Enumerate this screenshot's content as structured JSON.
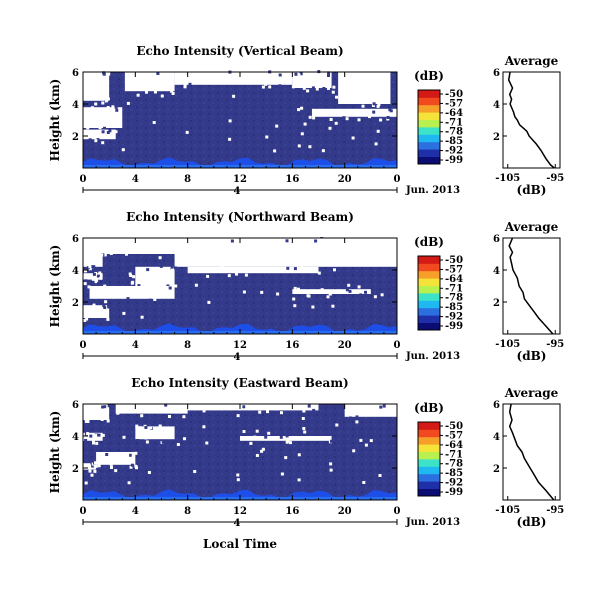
{
  "page": {
    "xlabel": "Local Time",
    "date_label": "Jun. 2013"
  },
  "colorbar": {
    "unit_label": "(dB)",
    "tick_labels": [
      "-50",
      "-57",
      "-64",
      "-71",
      "-78",
      "-85",
      "-92",
      "-99"
    ],
    "colors": [
      "#0b0d75",
      "#1f2fa8",
      "#2b6fe0",
      "#20b8f0",
      "#3de3c8",
      "#b8f050",
      "#f6e33a",
      "#f6a02a",
      "#f04a1e",
      "#d41a16"
    ]
  },
  "colors": {
    "background_fill": "#343a8a",
    "missing_data": "#ffffff",
    "near_ground": "#1e4ee8"
  },
  "chart_data": [
    {
      "type": "heatmap",
      "title": "Echo Intensity (Vertical Beam)",
      "ylabel": "Height (km)",
      "x_ticks": [
        "0",
        "4",
        "8",
        "12",
        "16",
        "20",
        "0"
      ],
      "y_ticks": [
        "6",
        "4",
        "2"
      ],
      "xlim": [
        0,
        24
      ],
      "ylim": [
        0,
        6
      ],
      "sub_tick_label": "4",
      "zrange": [
        -99,
        -50
      ],
      "white_regions": [
        [
          0.0,
          2.0,
          4.2,
          6.0
        ],
        [
          3.2,
          7.0,
          4.8,
          6.0
        ],
        [
          7.0,
          16.0,
          5.2,
          6.0
        ],
        [
          16.0,
          19.0,
          5.0,
          6.0
        ],
        [
          19.5,
          23.5,
          4.0,
          6.0
        ],
        [
          0.0,
          3.0,
          2.5,
          3.8
        ],
        [
          0.0,
          2.5,
          1.8,
          2.4
        ],
        [
          17.5,
          24.0,
          3.2,
          3.7
        ]
      ],
      "average_profile": {
        "title": "Average",
        "xlabel": "(dB)",
        "x_ticks": [
          "-105",
          "-95"
        ],
        "y_ticks": [
          "6",
          "4",
          "2"
        ],
        "xlim": [
          -106,
          -94
        ],
        "points": [
          [
            -104.5,
            6.0
          ],
          [
            -104.8,
            5.5
          ],
          [
            -104.0,
            5.0
          ],
          [
            -104.6,
            4.6
          ],
          [
            -104.2,
            4.3
          ],
          [
            -104.5,
            4.0
          ],
          [
            -103.8,
            3.5
          ],
          [
            -103.5,
            3.2
          ],
          [
            -103.0,
            3.0
          ],
          [
            -102.5,
            2.7
          ],
          [
            -101.0,
            2.3
          ],
          [
            -100.5,
            2.0
          ],
          [
            -99.0,
            1.5
          ],
          [
            -98.0,
            1.1
          ],
          [
            -97.0,
            0.6
          ],
          [
            -96.0,
            0.2
          ],
          [
            -95.2,
            0.0
          ]
        ]
      }
    },
    {
      "type": "heatmap",
      "title": "Echo Intensity (Northward Beam)",
      "ylabel": "Height (km)",
      "x_ticks": [
        "0",
        "4",
        "8",
        "12",
        "16",
        "20",
        "0"
      ],
      "y_ticks": [
        "6",
        "4",
        "2"
      ],
      "xlim": [
        0,
        24
      ],
      "ylim": [
        0,
        6
      ],
      "sub_tick_label": "4",
      "zrange": [
        -99,
        -50
      ],
      "white_regions": [
        [
          0.0,
          24.0,
          5.0,
          6.0
        ],
        [
          7.0,
          24.0,
          4.2,
          6.0
        ],
        [
          0.0,
          1.5,
          4.2,
          5.0
        ],
        [
          8.0,
          18.0,
          3.8,
          4.2
        ],
        [
          0.0,
          1.5,
          3.4,
          3.8
        ],
        [
          4.0,
          7.0,
          3.0,
          4.2
        ],
        [
          0.5,
          7.0,
          2.2,
          3.0
        ],
        [
          16.0,
          22.0,
          2.5,
          2.8
        ],
        [
          0.0,
          2.0,
          1.0,
          1.8
        ]
      ],
      "average_profile": {
        "title": "Average",
        "xlabel": "(dB)",
        "x_ticks": [
          "-105",
          "-95"
        ],
        "y_ticks": [
          "6",
          "4",
          "2"
        ],
        "xlim": [
          -106,
          -94
        ],
        "points": [
          [
            -104.0,
            6.0
          ],
          [
            -104.7,
            5.5
          ],
          [
            -104.0,
            5.1
          ],
          [
            -104.5,
            4.8
          ],
          [
            -104.2,
            4.4
          ],
          [
            -103.9,
            4.0
          ],
          [
            -103.0,
            3.5
          ],
          [
            -102.6,
            3.0
          ],
          [
            -101.8,
            2.6
          ],
          [
            -101.5,
            2.2
          ],
          [
            -100.5,
            1.8
          ],
          [
            -99.5,
            1.4
          ],
          [
            -98.5,
            1.0
          ],
          [
            -97.0,
            0.5
          ],
          [
            -95.5,
            0.0
          ]
        ]
      }
    },
    {
      "type": "heatmap",
      "title": "Echo Intensity (Eastward Beam)",
      "ylabel": "Height (km)",
      "x_ticks": [
        "0",
        "4",
        "8",
        "12",
        "16",
        "20",
        "0"
      ],
      "y_ticks": [
        "6",
        "4",
        "2"
      ],
      "xlim": [
        0,
        24
      ],
      "ylim": [
        0,
        6
      ],
      "sub_tick_label": "4",
      "zrange": [
        -99,
        -50
      ],
      "white_regions": [
        [
          0.0,
          2.0,
          5.0,
          6.0
        ],
        [
          2.5,
          8.0,
          5.4,
          6.0
        ],
        [
          8.0,
          18.0,
          5.6,
          6.0
        ],
        [
          20.0,
          24.0,
          5.2,
          6.0
        ],
        [
          4.0,
          7.0,
          3.8,
          4.6
        ],
        [
          0.0,
          1.5,
          3.7,
          4.2
        ],
        [
          1.0,
          4.0,
          2.2,
          3.0
        ],
        [
          12.0,
          19.0,
          3.7,
          4.0
        ],
        [
          0.0,
          1.0,
          1.9,
          2.3
        ]
      ],
      "average_profile": {
        "title": "Average",
        "xlabel": "(dB)",
        "x_ticks": [
          "-105",
          "-95"
        ],
        "y_ticks": [
          "6",
          "4",
          "2"
        ],
        "xlim": [
          -106,
          -94
        ],
        "points": [
          [
            -104.3,
            6.0
          ],
          [
            -104.6,
            5.5
          ],
          [
            -104.1,
            5.0
          ],
          [
            -104.6,
            4.6
          ],
          [
            -104.0,
            4.2
          ],
          [
            -103.5,
            3.8
          ],
          [
            -103.0,
            3.4
          ],
          [
            -102.0,
            3.0
          ],
          [
            -101.5,
            2.6
          ],
          [
            -100.5,
            2.1
          ],
          [
            -99.5,
            1.6
          ],
          [
            -98.5,
            1.1
          ],
          [
            -97.0,
            0.6
          ],
          [
            -95.3,
            0.0
          ]
        ]
      }
    }
  ]
}
